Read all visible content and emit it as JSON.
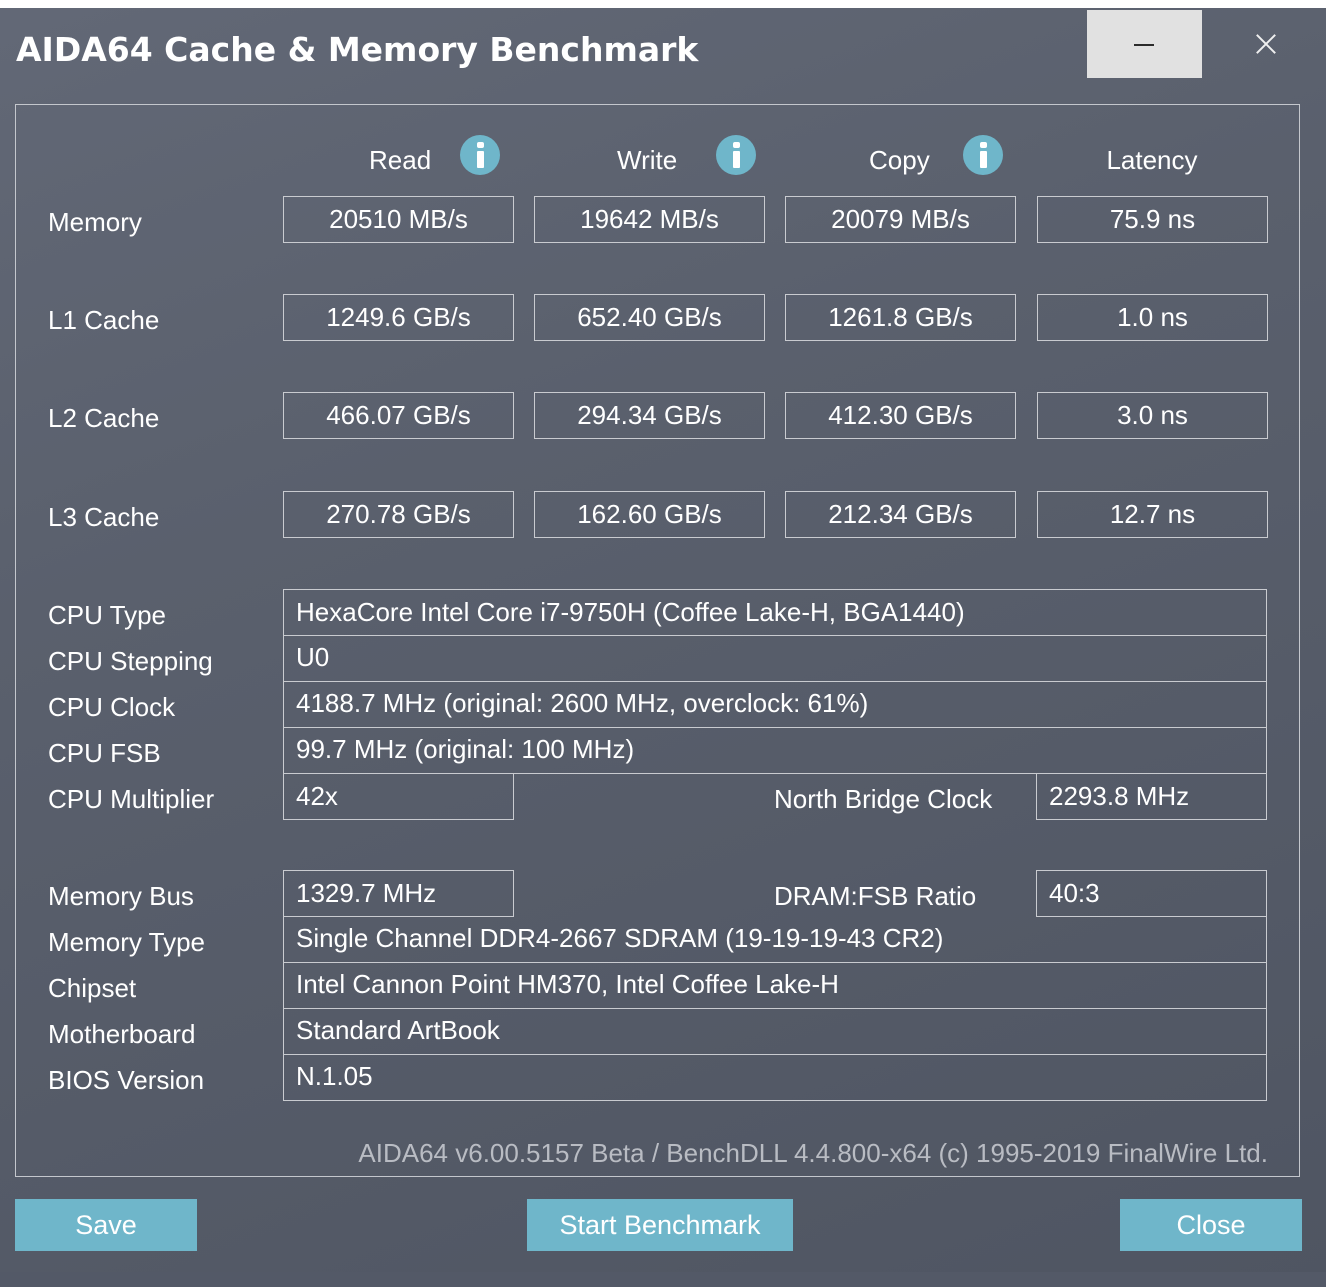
{
  "window": {
    "title": "AIDA64 Cache & Memory Benchmark"
  },
  "columns": {
    "read": "Read",
    "write": "Write",
    "copy": "Copy",
    "latency": "Latency"
  },
  "results": [
    {
      "label": "Memory",
      "read": "20510 MB/s",
      "write": "19642 MB/s",
      "copy": "20079 MB/s",
      "latency": "75.9 ns"
    },
    {
      "label": "L1 Cache",
      "read": "1249.6 GB/s",
      "write": "652.40 GB/s",
      "copy": "1261.8 GB/s",
      "latency": "1.0 ns"
    },
    {
      "label": "L2 Cache",
      "read": "466.07 GB/s",
      "write": "294.34 GB/s",
      "copy": "412.30 GB/s",
      "latency": "3.0 ns"
    },
    {
      "label": "L3 Cache",
      "read": "270.78 GB/s",
      "write": "162.60 GB/s",
      "copy": "212.34 GB/s",
      "latency": "12.7 ns"
    }
  ],
  "cpu": {
    "type_label": "CPU Type",
    "type_value": "HexaCore Intel Core i7-9750H  (Coffee Lake-H, BGA1440)",
    "stepping_label": "CPU Stepping",
    "stepping_value": "U0",
    "clock_label": "CPU Clock",
    "clock_value": "4188.7 MHz  (original: 2600 MHz, overclock: 61%)",
    "fsb_label": "CPU FSB",
    "fsb_value": "99.7 MHz  (original: 100 MHz)",
    "multiplier_label": "CPU Multiplier",
    "multiplier_value": "42x",
    "nb_clock_label": "North Bridge Clock",
    "nb_clock_value": "2293.8 MHz"
  },
  "memory": {
    "bus_label": "Memory Bus",
    "bus_value": "1329.7 MHz",
    "ratio_label": "DRAM:FSB Ratio",
    "ratio_value": "40:3",
    "type_label": "Memory Type",
    "type_value": "Single Channel DDR4-2667 SDRAM  (19-19-19-43 CR2)",
    "chipset_label": "Chipset",
    "chipset_value": "Intel Cannon Point HM370, Intel Coffee Lake-H",
    "motherboard_label": "Motherboard",
    "motherboard_value": "Standard ArtBook",
    "bios_label": "BIOS Version",
    "bios_value": "N.1.05"
  },
  "footer": {
    "version": "AIDA64 v6.00.5157 Beta / BenchDLL 4.4.800-x64  (c) 1995-2019 FinalWire Ltd."
  },
  "buttons": {
    "save": "Save",
    "start": "Start Benchmark",
    "close": "Close"
  },
  "icons": {
    "info": "info-icon",
    "minimize": "minimize-icon",
    "close": "close-icon"
  },
  "colors": {
    "accent": "#6fb6ca",
    "background": "#5a606d"
  }
}
